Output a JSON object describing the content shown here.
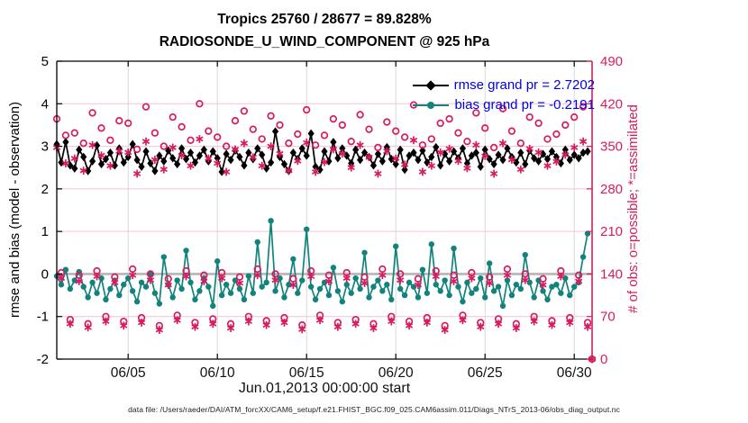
{
  "title": {
    "line1": "Tropics 25760 / 28677 = 89.828%",
    "line2": "RADIOSONDE_U_WIND_COMPONENT @ 925 hPa"
  },
  "legend": {
    "text_color": "#0000ee",
    "items": [
      {
        "label": "rmse grand pr = 2.7202",
        "color": "#000000",
        "marker": "diamond"
      },
      {
        "label": "bias grand pr = -0.2191",
        "color": "#12837c",
        "marker": "circle"
      }
    ]
  },
  "axes": {
    "left": {
      "label": "rmse and bias (model - observation)",
      "ticks": [
        5,
        4,
        3,
        2,
        1,
        0,
        -1,
        -2
      ],
      "range": [
        -2,
        5
      ],
      "color": "#000000"
    },
    "right": {
      "label": "# of obs: o=possible; *=assimilated",
      "ticks": [
        490,
        420,
        350,
        280,
        210,
        140,
        70,
        0
      ],
      "range": [
        0,
        490
      ],
      "color": "#d81b60"
    },
    "x": {
      "label": "Jun.01,2013 00:00:00 start",
      "tick_labels": [
        "06/05",
        "06/10",
        "06/15",
        "06/20",
        "06/25",
        "06/30"
      ],
      "tick_days": [
        4,
        9,
        14,
        19,
        24,
        29
      ],
      "range_days": [
        0,
        30
      ]
    }
  },
  "footer": "data file: /Users/raeder/DAI/ATM_forcXX/CAM6_setup/f.e21.FHIST_BGC.f09_025.CAM6assim.011/Diags_NTrS_2013-06/obs_diag_output.nc",
  "colors": {
    "rmse": "#000000",
    "bias": "#12837c",
    "obs": "#d81b60",
    "zero_line": "#b5b5b5",
    "grid_x": "#d9d9d9",
    "grid_right": "#f3c2d3"
  },
  "chart_data": {
    "type": "line",
    "title": "Tropics 25760 / 28677 = 89.828% | RADIOSONDE_U_WIND_COMPONENT @ 925 hPa",
    "xlabel": "Jun.01,2013 00:00:00 start",
    "ylabel_left": "rmse and bias (model - observation)",
    "ylabel_right": "# of obs: o=possible; *=assimilated",
    "ylim_left": [
      -2,
      5
    ],
    "ylim_right": [
      0,
      490
    ],
    "grand_pr": {
      "rmse": 2.7202,
      "bias": -0.2191
    },
    "time_step_days": 0.25,
    "series": [
      {
        "name": "rmse",
        "axis": "left",
        "marker": "diamond",
        "line": true,
        "color": "#000000",
        "values": [
          3.05,
          2.62,
          3.1,
          2.55,
          2.48,
          2.92,
          2.75,
          2.42,
          2.65,
          3.02,
          2.58,
          2.7,
          2.85,
          2.55,
          2.95,
          2.62,
          2.75,
          3.05,
          2.68,
          2.52,
          2.88,
          2.6,
          2.42,
          2.78,
          2.65,
          2.9,
          2.72,
          2.58,
          2.95,
          2.7,
          2.85,
          2.62,
          2.78,
          2.92,
          2.65,
          2.88,
          2.72,
          2.4,
          2.82,
          2.68,
          2.9,
          2.75,
          2.55,
          2.85,
          2.7,
          2.95,
          2.8,
          2.48,
          2.62,
          3.35,
          2.75,
          2.58,
          2.42,
          2.85,
          2.7,
          2.95,
          2.78,
          3.3,
          2.52,
          2.45,
          2.88,
          2.65,
          3.1,
          2.72,
          2.95,
          2.78,
          2.6,
          2.92,
          2.68,
          2.85,
          2.75,
          2.55,
          2.82,
          2.65,
          2.98,
          2.7,
          2.58,
          2.92,
          2.45,
          2.78,
          2.85,
          2.68,
          2.9,
          2.62,
          2.75,
          2.98,
          2.55,
          2.82,
          2.65,
          2.88,
          2.72,
          2.95,
          2.6,
          2.78,
          2.85,
          2.52,
          2.92,
          2.7,
          2.58,
          2.8,
          2.68,
          2.95,
          2.75,
          2.62,
          2.85,
          2.58,
          2.9,
          2.72,
          2.65,
          2.82,
          2.7,
          2.88,
          2.75,
          2.6,
          2.92,
          2.68,
          2.8,
          2.72,
          2.85,
          2.88
        ]
      },
      {
        "name": "bias",
        "axis": "left",
        "marker": "circle",
        "line": true,
        "color": "#12837c",
        "values": [
          -0.05,
          -0.25,
          0.1,
          -0.35,
          -0.15,
          0.05,
          -0.3,
          -0.55,
          -0.2,
          -0.45,
          -0.1,
          -0.6,
          -0.35,
          -0.15,
          -0.5,
          -0.25,
          -0.1,
          -0.4,
          -0.65,
          -0.2,
          -0.3,
          0.0,
          -0.45,
          -0.7,
          0.4,
          -0.25,
          -0.55,
          -0.15,
          -0.35,
          0.55,
          -0.2,
          -0.6,
          -0.4,
          -0.1,
          -0.3,
          -0.75,
          0.3,
          -0.5,
          -0.25,
          -0.45,
          -0.15,
          -0.35,
          -0.6,
          -0.05,
          -0.45,
          0.75,
          -0.3,
          -0.2,
          1.25,
          -0.4,
          -0.1,
          -0.55,
          -0.25,
          0.35,
          -0.45,
          -0.15,
          1.05,
          -0.3,
          -0.6,
          -0.35,
          -0.2,
          -0.5,
          0.15,
          -0.4,
          -0.65,
          -0.25,
          -0.45,
          -0.1,
          -0.35,
          0.5,
          -0.55,
          -0.3,
          -0.15,
          -0.4,
          -0.25,
          -0.6,
          0.65,
          -0.35,
          -0.5,
          -0.2,
          -0.3,
          -0.55,
          0.1,
          -0.45,
          0.7,
          -0.25,
          -0.4,
          -0.15,
          -0.5,
          0.6,
          -0.3,
          -0.65,
          -0.2,
          -0.45,
          -0.35,
          -0.1,
          -0.55,
          0.25,
          -0.4,
          -0.3,
          -0.75,
          -0.15,
          -0.5,
          -0.25,
          -0.35,
          0.45,
          -0.2,
          -0.55,
          -0.15,
          -0.4,
          -0.6,
          -0.3,
          -0.25,
          -0.45,
          -0.1,
          -0.5,
          -0.3,
          -0.2,
          0.4,
          0.95
        ]
      },
      {
        "name": "possible",
        "axis": "right",
        "marker": "open-circle",
        "line": false,
        "color": "#d81b60",
        "values": [
          395,
          142,
          368,
          65,
          372,
          138,
          355,
          58,
          405,
          145,
          380,
          70,
          360,
          135,
          392,
          62,
          388,
          148,
          345,
          68,
          415,
          140,
          372,
          55,
          350,
          132,
          398,
          72,
          382,
          145,
          360,
          60,
          420,
          138,
          375,
          66,
          365,
          142,
          350,
          58,
          392,
          135,
          408,
          70,
          378,
          148,
          362,
          63,
          400,
          140,
          385,
          68,
          355,
          132,
          370,
          56,
          410,
          145,
          352,
          72,
          368,
          138,
          395,
          60,
          385,
          142,
          358,
          65,
          402,
          135,
          378,
          58,
          348,
          148,
          390,
          70,
          375,
          140,
          365,
          62,
          418,
          132,
          352,
          68,
          362,
          145,
          388,
          55,
          395,
          138,
          372,
          72,
          358,
          142,
          405,
          60,
          380,
          135,
          348,
          66,
          412,
          148,
          375,
          58,
          355,
          140,
          398,
          70,
          388,
          132,
          362,
          63,
          370,
          145,
          385,
          68,
          398,
          138,
          415,
          60,
          0
        ]
      },
      {
        "name": "assimilated",
        "axis": "right",
        "marker": "asterisk",
        "line": false,
        "color": "#d81b60",
        "values": [
          348,
          133,
          322,
          58,
          330,
          128,
          310,
          52,
          352,
          136,
          335,
          62,
          318,
          126,
          342,
          55,
          340,
          138,
          305,
          60,
          358,
          130,
          328,
          48,
          312,
          122,
          348,
          64,
          335,
          136,
          318,
          53,
          362,
          128,
          330,
          58,
          322,
          133,
          308,
          51,
          345,
          125,
          355,
          62,
          332,
          138,
          318,
          56,
          350,
          130,
          338,
          60,
          310,
          122,
          326,
          49,
          356,
          136,
          308,
          64,
          324,
          128,
          345,
          53,
          338,
          133,
          315,
          58,
          352,
          125,
          332,
          51,
          305,
          138,
          342,
          62,
          330,
          130,
          320,
          55,
          360,
          122,
          308,
          60,
          318,
          136,
          340,
          48,
          346,
          128,
          326,
          64,
          314,
          133,
          352,
          53,
          334,
          125,
          305,
          58,
          355,
          138,
          328,
          51,
          312,
          130,
          346,
          62,
          340,
          122,
          318,
          56,
          325,
          136,
          336,
          60,
          348,
          128,
          358,
          53,
          0
        ]
      }
    ]
  }
}
